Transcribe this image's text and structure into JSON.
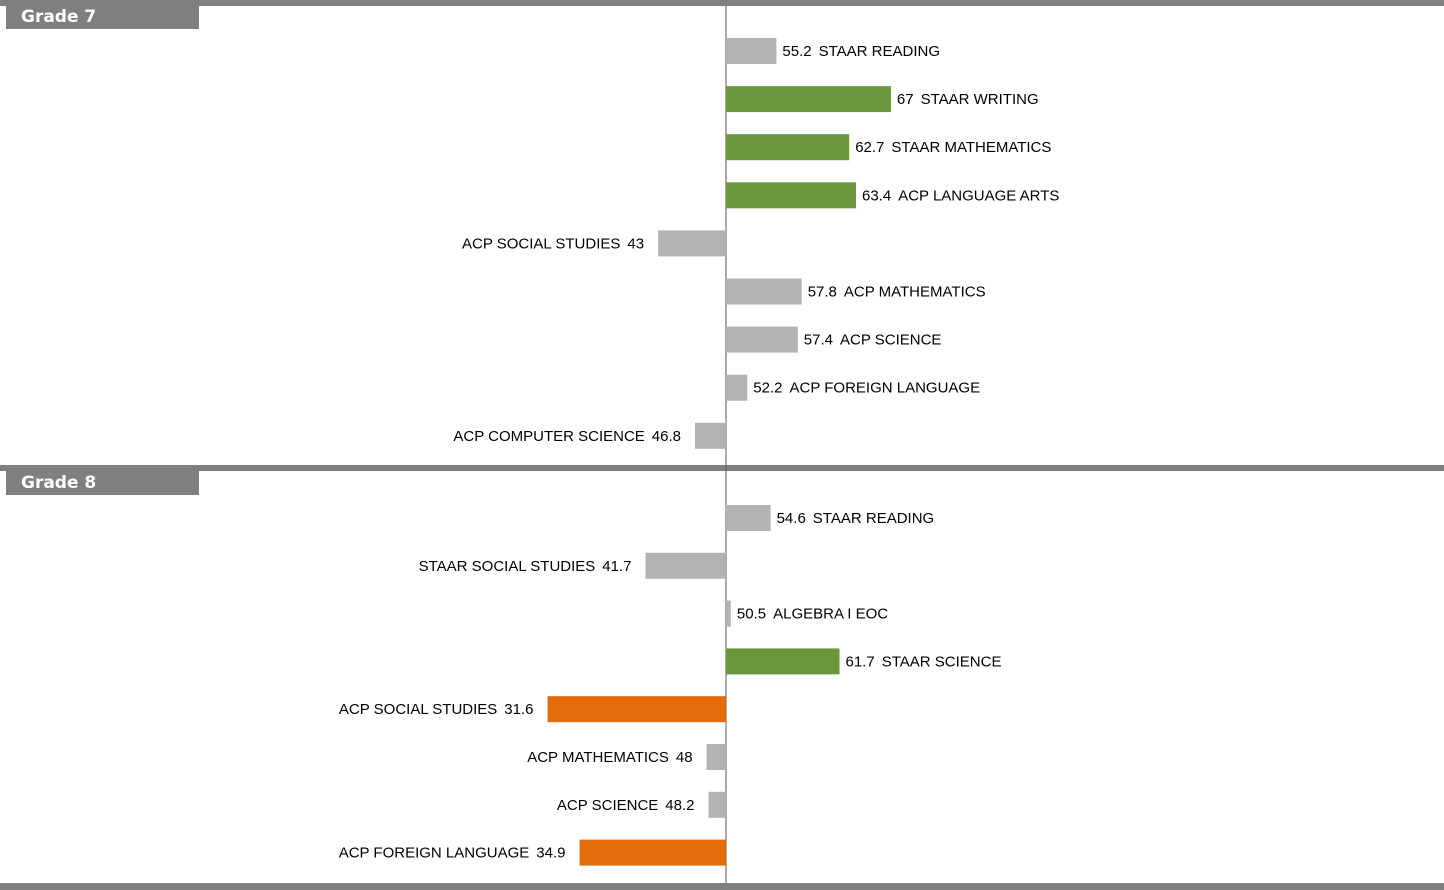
{
  "chart_data": {
    "type": "bar",
    "orientation": "horizontal-diverging",
    "baseline": 50,
    "xlim": [
      20,
      80
    ],
    "colors": {
      "neutral": "#b3b3b3",
      "above": "#6a963c",
      "below": "#e36c0a"
    },
    "groups": [
      {
        "title": "Grade 7",
        "bars": [
          {
            "label": "STAAR READING",
            "value": 55.2,
            "display": "55.2",
            "color": "neutral"
          },
          {
            "label": "STAAR WRITING",
            "value": 67,
            "display": "67",
            "color": "above"
          },
          {
            "label": "STAAR MATHEMATICS",
            "value": 62.7,
            "display": "62.7",
            "color": "above"
          },
          {
            "label": "ACP LANGUAGE ARTS",
            "value": 63.4,
            "display": "63.4",
            "color": "above"
          },
          {
            "label": "ACP SOCIAL STUDIES",
            "value": 43,
            "display": "43",
            "color": "neutral"
          },
          {
            "label": "ACP MATHEMATICS",
            "value": 57.8,
            "display": "57.8",
            "color": "neutral"
          },
          {
            "label": "ACP SCIENCE",
            "value": 57.4,
            "display": "57.4",
            "color": "neutral"
          },
          {
            "label": "ACP FOREIGN LANGUAGE",
            "value": 52.2,
            "display": "52.2",
            "color": "neutral"
          },
          {
            "label": "ACP COMPUTER SCIENCE",
            "value": 46.8,
            "display": "46.8",
            "color": "neutral"
          }
        ]
      },
      {
        "title": "Grade 8",
        "bars": [
          {
            "label": "STAAR READING",
            "value": 54.6,
            "display": "54.6",
            "color": "neutral"
          },
          {
            "label": "STAAR SOCIAL STUDIES",
            "value": 41.7,
            "display": "41.7",
            "color": "neutral"
          },
          {
            "label": "ALGEBRA I EOC",
            "value": 50.5,
            "display": "50.5",
            "color": "neutral"
          },
          {
            "label": "STAAR SCIENCE",
            "value": 61.7,
            "display": "61.7",
            "color": "above"
          },
          {
            "label": "ACP SOCIAL STUDIES",
            "value": 31.6,
            "display": "31.6",
            "color": "below"
          },
          {
            "label": "ACP MATHEMATICS",
            "value": 48,
            "display": "48",
            "color": "neutral"
          },
          {
            "label": "ACP SCIENCE",
            "value": 48.2,
            "display": "48.2",
            "color": "neutral"
          },
          {
            "label": "ACP FOREIGN LANGUAGE",
            "value": 34.9,
            "display": "34.9",
            "color": "below"
          }
        ]
      }
    ]
  }
}
